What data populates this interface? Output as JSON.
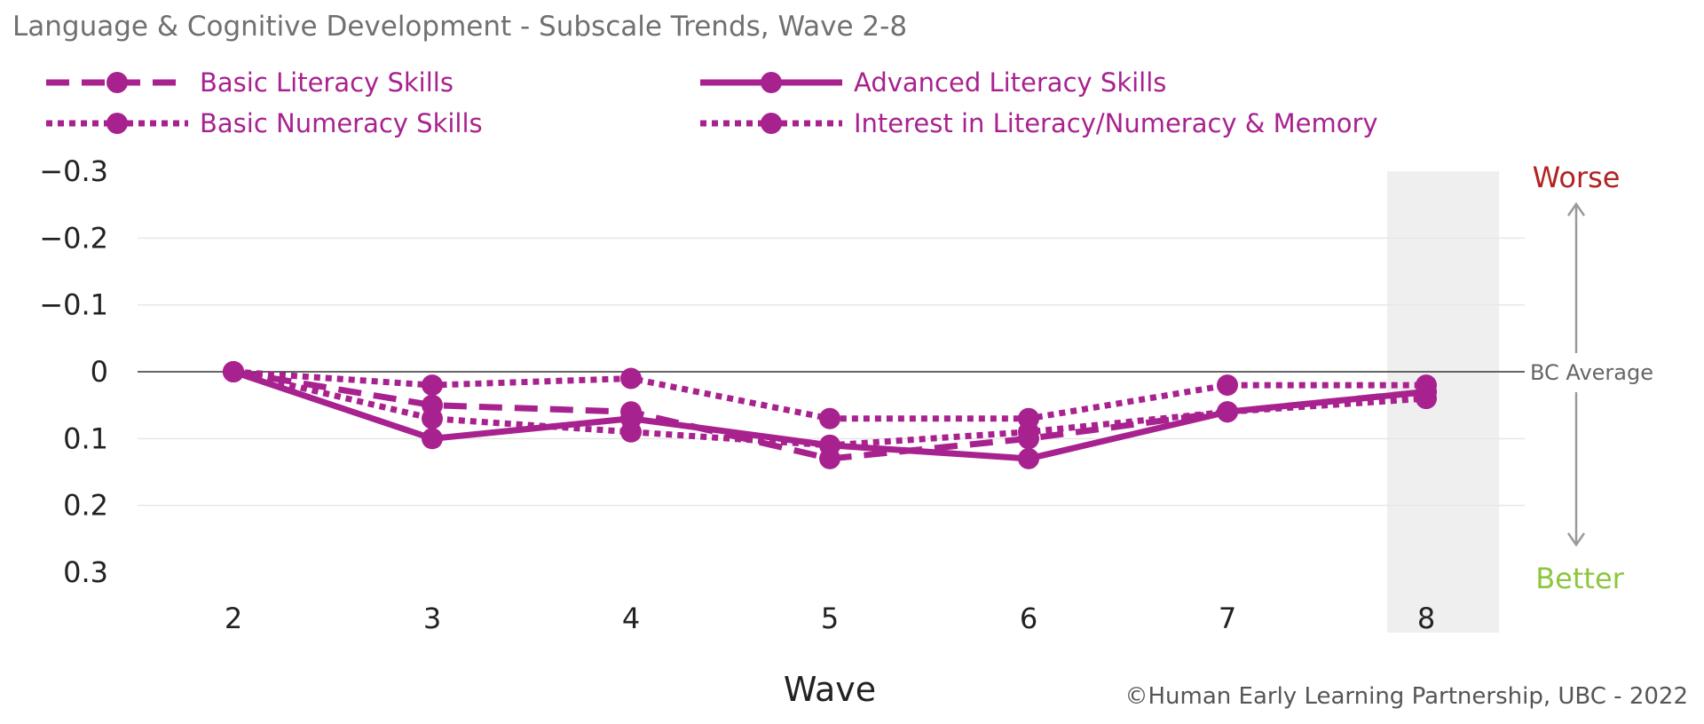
{
  "chart_data": {
    "type": "line",
    "title": "Language & Cognitive Development - Subscale Trends, Wave 2-8",
    "xlabel": "Wave",
    "ylabel": "",
    "categories": [
      "2",
      "3",
      "4",
      "5",
      "6",
      "7",
      "8"
    ],
    "ylim": [
      -0.3,
      0.3
    ],
    "y_inverted": true,
    "yticks": [
      "−0.3",
      "−0.2",
      "−0.1",
      "0",
      "0.1",
      "0.2",
      "0.3"
    ],
    "reference_line": {
      "value": 0,
      "label": "BC Average"
    },
    "highlight_category": "8",
    "annotations": {
      "top": "Worse",
      "bottom": "Better"
    },
    "legend_position": "top",
    "grid": true,
    "series": [
      {
        "name": "Basic Literacy Skills",
        "style": "dashed",
        "values": [
          0,
          0.05,
          0.06,
          0.13,
          0.1,
          0.06,
          0.03
        ]
      },
      {
        "name": "Advanced Literacy Skills",
        "style": "solid",
        "values": [
          0,
          0.1,
          0.07,
          0.11,
          0.13,
          0.06,
          0.03
        ]
      },
      {
        "name": "Basic Numeracy Skills",
        "style": "dotted",
        "values": [
          0,
          0.07,
          0.09,
          0.11,
          0.09,
          0.06,
          0.04
        ]
      },
      {
        "name": "Interest in Literacy/Numeracy & Memory",
        "style": "dotted",
        "values": [
          0,
          0.02,
          0.01,
          0.07,
          0.07,
          0.02,
          0.02
        ]
      }
    ]
  },
  "colors": {
    "series": "#a8228f",
    "worse": "#b22222",
    "better": "#8dc63f",
    "highlight": "#efefef",
    "title": "#707070",
    "arrow": "#9a9a9a"
  },
  "footer": {
    "copyright": "©Human Early Learning Partnership, UBC - 2022"
  }
}
